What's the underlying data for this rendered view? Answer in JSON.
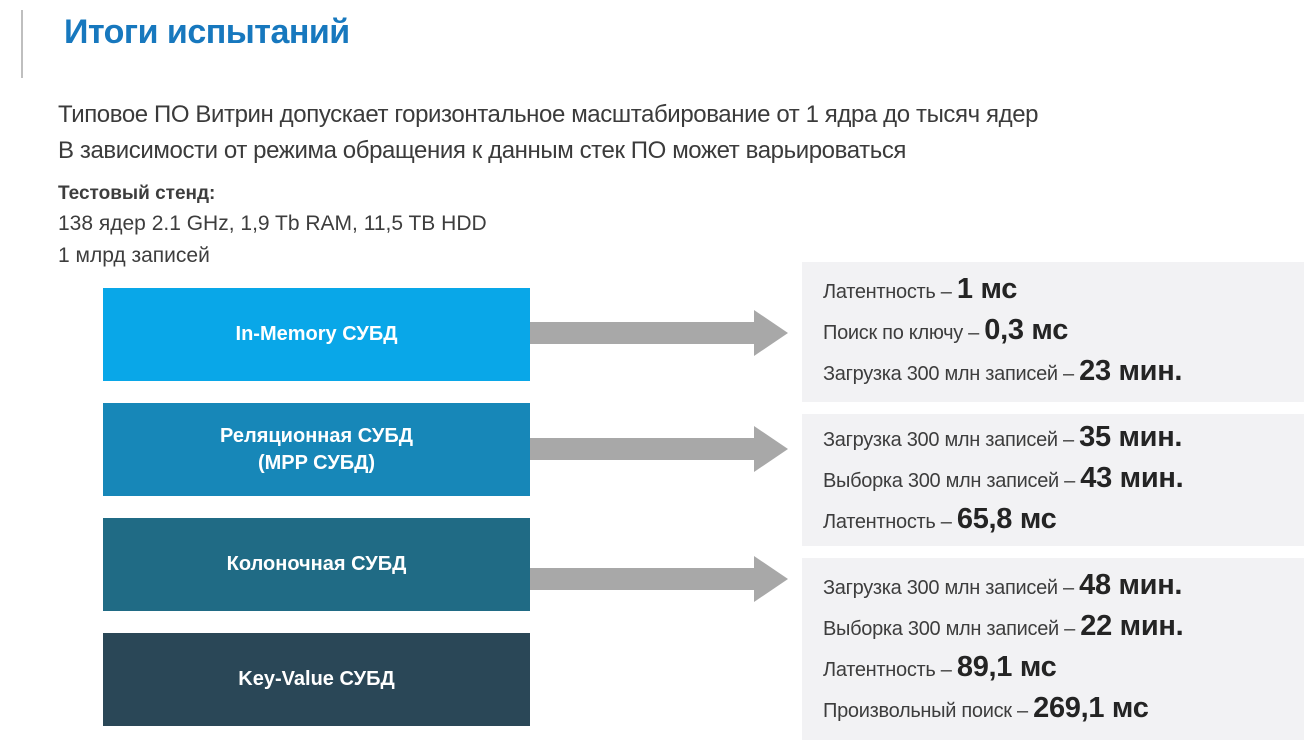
{
  "slide": {
    "title": "Итоги испытаний",
    "intro_lines": [
      "Типовое ПО Витрин допускает горизонтальное масштабирование от 1 ядра до тысяч ядер",
      "В зависимости от режима обращения к данным стек ПО может варьироваться"
    ],
    "test_stand": {
      "heading": "Тестовый стенд:",
      "lines": [
        "138 ядер 2.1 GHz, 1,9 Tb RAM, 11,5 TB HDD",
        "1 млрд записей"
      ]
    }
  },
  "diagram": {
    "boxes": [
      {
        "id": "in-memory",
        "label_lines": [
          "In-Memory СУБД"
        ],
        "color": "#09a7e8"
      },
      {
        "id": "relational",
        "label_lines": [
          "Реляционная СУБД",
          "(MPP СУБД)"
        ],
        "color": "#1787b8"
      },
      {
        "id": "columnar",
        "label_lines": [
          "Колоночная СУБД"
        ],
        "color": "#206b85"
      },
      {
        "id": "key-value",
        "label_lines": [
          "Key-Value СУБД"
        ],
        "color": "#2a4757"
      }
    ],
    "panels": [
      {
        "metrics": [
          {
            "label": "Латентность – ",
            "value": "1 мс"
          },
          {
            "label": "Поиск по ключу – ",
            "value": "0,3 мс"
          },
          {
            "label": "Загрузка 300 млн записей – ",
            "value": "23 мин."
          }
        ]
      },
      {
        "metrics": [
          {
            "label": "Загрузка 300 млн записей – ",
            "value": "35 мин."
          },
          {
            "label": "Выборка 300 млн записей – ",
            "value": "43 мин."
          },
          {
            "label": "Латентность – ",
            "value": "65,8 мс"
          }
        ]
      },
      {
        "metrics": [
          {
            "label": "Загрузка 300 млн записей – ",
            "value": "48 мин."
          },
          {
            "label": "Выборка 300 млн записей – ",
            "value": "22 мин."
          },
          {
            "label": "Латентность – ",
            "value": "89,1 мс"
          },
          {
            "label": "Произвольный поиск – ",
            "value": "269,1 мс"
          }
        ]
      }
    ],
    "colors": {
      "title": "#1778be",
      "arrow": "#a8a8a8",
      "panel_bg": "#f2f2f4",
      "accent_line": "#bfbfbf"
    }
  }
}
